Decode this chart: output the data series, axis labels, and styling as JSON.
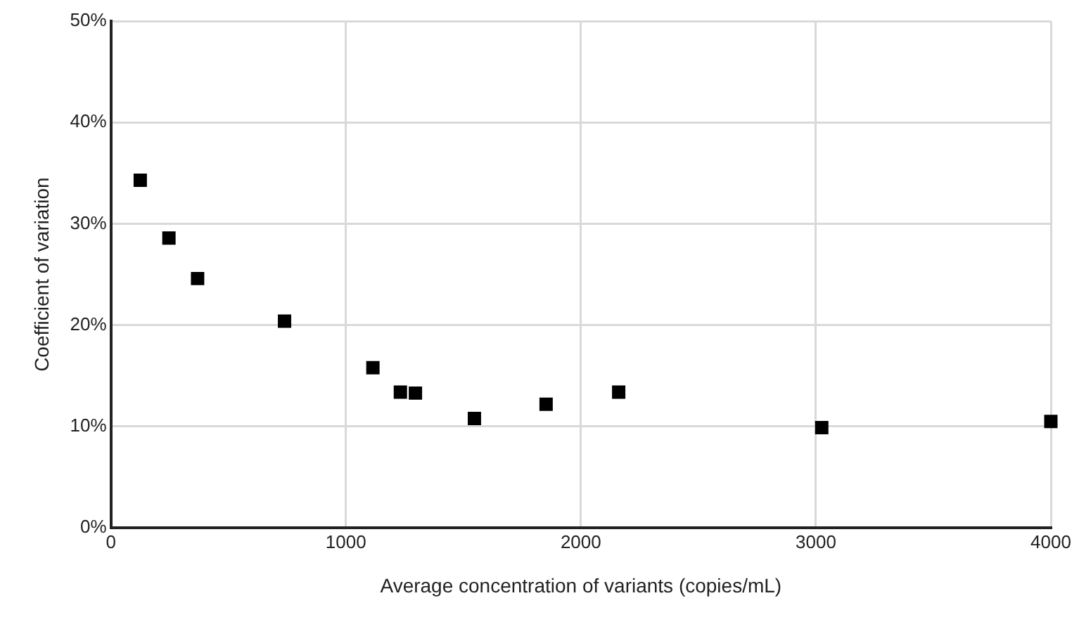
{
  "chart_data": {
    "type": "scatter",
    "xlabel": "Average concentration of variants (copies/mL)",
    "ylabel": "Coefficient of variation",
    "series": [
      {
        "color": "#000000",
        "x": [
          125,
          247,
          369,
          739,
          1115,
          1232,
          1296,
          1547,
          1852,
          2161,
          3025,
          4000
        ],
        "values": [
          34.3,
          28.6,
          24.6,
          20.4,
          15.8,
          13.4,
          13.3,
          10.8,
          12.2,
          13.4,
          9.9,
          10.5
        ]
      }
    ],
    "xlim": [
      0,
      4000
    ],
    "xticks": [
      0,
      1000,
      2000,
      3000,
      4000
    ],
    "ylim": [
      0,
      50
    ],
    "yticks": [
      {
        "value": 0,
        "label": "0%"
      },
      {
        "value": 10,
        "label": "10%"
      },
      {
        "value": 20,
        "label": "20%"
      },
      {
        "value": 30,
        "label": "30%"
      },
      {
        "value": 40,
        "label": "40%"
      },
      {
        "value": 50,
        "label": "50%"
      }
    ],
    "grid": true,
    "legend": false,
    "marker": "square"
  }
}
